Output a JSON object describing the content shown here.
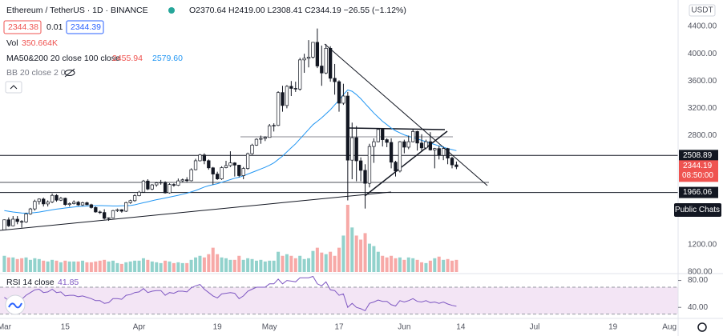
{
  "header": {
    "title": "Ethereum / TetherUS · 1D · BINANCE",
    "ohlc_text": "O2370.64 H2419.00 L2308.41 C2344.19 −26.55 (−1.12%)",
    "bid": "2344.38",
    "spread": "0.01",
    "ask": "2344.39",
    "vol_label": "Vol",
    "vol_value": "350.664K",
    "ma_label": "MA50&200 20 close 100 close",
    "ma_value_1": "2455.94",
    "ma_value_2": "2579.60",
    "bb_label": "BB 20 close 2 0",
    "rsi_label": "RSI 14 close",
    "currency": "USDT",
    "countdown": "08:50:00",
    "chat_button": "Public Chats"
  },
  "chart_data": {
    "type": "candlestick",
    "x": [
      "Mar 1",
      "Mar 2",
      "Mar 3",
      "Mar 4",
      "Mar 5",
      "Mar 6",
      "Mar 7",
      "Mar 8",
      "Mar 9",
      "Mar 10",
      "Mar 11",
      "Mar 12",
      "Mar 13",
      "Mar 14",
      "Mar 15",
      "Mar 16",
      "Mar 17",
      "Mar 18",
      "Mar 19",
      "Mar 20",
      "Mar 21",
      "Mar 22",
      "Mar 23",
      "Mar 24",
      "Mar 25",
      "Mar 26",
      "Mar 27",
      "Mar 28",
      "Mar 29",
      "Mar 30",
      "Mar 31",
      "Apr 1",
      "Apr 2",
      "Apr 3",
      "Apr 4",
      "Apr 5",
      "Apr 6",
      "Apr 7",
      "Apr 8",
      "Apr 9",
      "Apr 10",
      "Apr 11",
      "Apr 12",
      "Apr 13",
      "Apr 14",
      "Apr 15",
      "Apr 16",
      "Apr 17",
      "Apr 18",
      "Apr 19",
      "Apr 20",
      "Apr 21",
      "Apr 22",
      "Apr 23",
      "Apr 24",
      "Apr 25",
      "Apr 26",
      "Apr 27",
      "Apr 28",
      "Apr 29",
      "Apr 30",
      "May 1",
      "May 2",
      "May 3",
      "May 4",
      "May 5",
      "May 6",
      "May 7",
      "May 8",
      "May 9",
      "May 10",
      "May 11",
      "May 12",
      "May 13",
      "May 14",
      "May 15",
      "May 16",
      "May 17",
      "May 18",
      "May 19",
      "May 20",
      "May 21",
      "May 22",
      "May 23",
      "May 24",
      "May 25",
      "May 26",
      "May 27",
      "May 28",
      "May 29",
      "May 30",
      "May 31",
      "Jun 1",
      "Jun 2",
      "Jun 3",
      "Jun 4",
      "Jun 5",
      "Jun 6",
      "Jun 7",
      "Jun 8",
      "Jun 9",
      "Jun 10",
      "Jun 11",
      "Jun 12",
      "Jun 13"
    ],
    "ohlc": [
      [
        1418,
        1570,
        1410,
        1565
      ],
      [
        1565,
        1600,
        1460,
        1477
      ],
      [
        1477,
        1620,
        1470,
        1574
      ],
      [
        1574,
        1620,
        1500,
        1540
      ],
      [
        1540,
        1560,
        1450,
        1533
      ],
      [
        1533,
        1670,
        1520,
        1652
      ],
      [
        1652,
        1740,
        1640,
        1725
      ],
      [
        1725,
        1860,
        1700,
        1835
      ],
      [
        1835,
        1880,
        1790,
        1869
      ],
      [
        1869,
        1890,
        1760,
        1798
      ],
      [
        1798,
        1850,
        1760,
        1826
      ],
      [
        1826,
        1950,
        1810,
        1923
      ],
      [
        1923,
        1940,
        1830,
        1853
      ],
      [
        1853,
        1900,
        1840,
        1881
      ],
      [
        1881,
        1890,
        1770,
        1789
      ],
      [
        1789,
        1820,
        1760,
        1803
      ],
      [
        1803,
        1850,
        1790,
        1823
      ],
      [
        1823,
        1840,
        1770,
        1783
      ],
      [
        1783,
        1830,
        1770,
        1815
      ],
      [
        1815,
        1830,
        1780,
        1786
      ],
      [
        1786,
        1800,
        1730,
        1745
      ],
      [
        1745,
        1760,
        1670,
        1680
      ],
      [
        1680,
        1700,
        1650,
        1672
      ],
      [
        1672,
        1720,
        1570,
        1587
      ],
      [
        1587,
        1600,
        1550,
        1594
      ],
      [
        1594,
        1710,
        1590,
        1700
      ],
      [
        1700,
        1730,
        1680,
        1713
      ],
      [
        1713,
        1720,
        1670,
        1691
      ],
      [
        1691,
        1830,
        1680,
        1817
      ],
      [
        1817,
        1860,
        1800,
        1846
      ],
      [
        1846,
        1940,
        1830,
        1919
      ],
      [
        1919,
        1990,
        1910,
        1970
      ],
      [
        1970,
        2150,
        1960,
        2134
      ],
      [
        2134,
        2160,
        2000,
        2016
      ],
      [
        2016,
        2090,
        2000,
        2077
      ],
      [
        2077,
        2120,
        2050,
        2107
      ],
      [
        2107,
        2150,
        2080,
        2114
      ],
      [
        2114,
        2130,
        1950,
        1960
      ],
      [
        1960,
        2100,
        1950,
        2083
      ],
      [
        2083,
        2100,
        2050,
        2071
      ],
      [
        2071,
        2170,
        2060,
        2136
      ],
      [
        2136,
        2170,
        2120,
        2152
      ],
      [
        2152,
        2190,
        2120,
        2138
      ],
      [
        2138,
        2320,
        2130,
        2300
      ],
      [
        2300,
        2460,
        2290,
        2431
      ],
      [
        2431,
        2530,
        2420,
        2516
      ],
      [
        2516,
        2540,
        2380,
        2432
      ],
      [
        2432,
        2450,
        2300,
        2327
      ],
      [
        2327,
        2340,
        2080,
        2236
      ],
      [
        2236,
        2270,
        2150,
        2165
      ],
      [
        2165,
        2350,
        2150,
        2330
      ],
      [
        2330,
        2430,
        2320,
        2360
      ],
      [
        2360,
        2570,
        2340,
        2399
      ],
      [
        2399,
        2410,
        2200,
        2367
      ],
      [
        2367,
        2370,
        2190,
        2213
      ],
      [
        2213,
        2340,
        2160,
        2318
      ],
      [
        2318,
        2550,
        2300,
        2534
      ],
      [
        2534,
        2680,
        2520,
        2660
      ],
      [
        2660,
        2760,
        2650,
        2746
      ],
      [
        2746,
        2800,
        2680,
        2758
      ],
      [
        2758,
        2790,
        2720,
        2773
      ],
      [
        2773,
        2970,
        2770,
        2944
      ],
      [
        2944,
        2980,
        2860,
        2949
      ],
      [
        2949,
        3450,
        2940,
        3431
      ],
      [
        3431,
        3530,
        3150,
        3241
      ],
      [
        3241,
        3540,
        3200,
        3522
      ],
      [
        3522,
        3600,
        3380,
        3492
      ],
      [
        3492,
        3590,
        3440,
        3482
      ],
      [
        3482,
        3940,
        3460,
        3910
      ],
      [
        3910,
        4000,
        3720,
        3933
      ],
      [
        3933,
        4200,
        3800,
        3950
      ],
      [
        3950,
        4170,
        3930,
        4167
      ],
      [
        4167,
        4370,
        3790,
        3820
      ],
      [
        3820,
        4120,
        3530,
        3718
      ],
      [
        3718,
        4140,
        3700,
        4080
      ],
      [
        4080,
        4110,
        3590,
        3640
      ],
      [
        3640,
        3850,
        3400,
        3590
      ],
      [
        3590,
        3610,
        3150,
        3275
      ],
      [
        3275,
        3560,
        3250,
        3380
      ],
      [
        3380,
        3440,
        1850,
        2440
      ],
      [
        2440,
        2990,
        2160,
        2770
      ],
      [
        2770,
        2940,
        2130,
        2430
      ],
      [
        2430,
        2480,
        2130,
        2290
      ],
      [
        2290,
        2380,
        1730,
        2100
      ],
      [
        2100,
        2680,
        2040,
        2640
      ],
      [
        2640,
        2760,
        2400,
        2710
      ],
      [
        2710,
        2910,
        2700,
        2890
      ],
      [
        2890,
        2900,
        2640,
        2740
      ],
      [
        2740,
        2760,
        2630,
        2700
      ],
      [
        2700,
        2760,
        2320,
        2410
      ],
      [
        2410,
        2430,
        2200,
        2280
      ],
      [
        2280,
        2720,
        2260,
        2710
      ],
      [
        2710,
        2740,
        2540,
        2630
      ],
      [
        2630,
        2800,
        2600,
        2710
      ],
      [
        2710,
        2890,
        2700,
        2860
      ],
      [
        2860,
        2870,
        2580,
        2690
      ],
      [
        2690,
        2820,
        2560,
        2620
      ],
      [
        2620,
        2740,
        2600,
        2710
      ],
      [
        2710,
        2850,
        2580,
        2590
      ],
      [
        2590,
        2620,
        2320,
        2610
      ],
      [
        2610,
        2650,
        2450,
        2510
      ],
      [
        2510,
        2640,
        2440,
        2610
      ],
      [
        2610,
        2620,
        2380,
        2470
      ],
      [
        2470,
        2490,
        2320,
        2370.74
      ],
      [
        2370.64,
        2419.0,
        2308.41,
        2344.19
      ]
    ],
    "up_color": "#ffffff",
    "down_color": "#131722",
    "wick_color": "#131722",
    "ylim": [
      788,
      4788
    ],
    "yticks": [
      {
        "value": 4400,
        "label": "4400.00"
      },
      {
        "value": 4000,
        "label": "4000.00"
      },
      {
        "value": 3600,
        "label": "3600.00"
      },
      {
        "value": 3200,
        "label": "3200.00"
      },
      {
        "value": 2800,
        "label": "2800.00"
      },
      {
        "value": 1200,
        "label": "1200.00"
      },
      {
        "value": 800,
        "label": "800.00"
      }
    ],
    "xlim": [
      "Feb 28",
      "Aug 3"
    ],
    "xticks": [
      {
        "value": "Mar 1",
        "label": "Mar"
      },
      {
        "value": "Mar 15",
        "label": "15"
      },
      {
        "value": "Apr 1",
        "label": "Apr"
      },
      {
        "value": "Apr 19",
        "label": "19"
      },
      {
        "value": "May 1",
        "label": "May"
      },
      {
        "value": "May 17",
        "label": "17"
      },
      {
        "value": "Jun 1",
        "label": "Jun"
      },
      {
        "value": "Jun 14",
        "label": "14"
      },
      {
        "value": "Jul 1",
        "label": "Jul"
      },
      {
        "value": "Jul 19",
        "label": "19"
      },
      {
        "value": "Aug 1",
        "label": "Aug"
      }
    ],
    "price_lines": [
      2508.89,
      1966.06
    ],
    "volume": {
      "up_color": "#26a69a",
      "down_color": "#ef5350",
      "values": [
        468000,
        421200,
        421200,
        374400,
        397800,
        421200,
        351000,
        397800,
        374400,
        327600,
        304200,
        351000,
        327600,
        280800,
        327600,
        304200,
        304200,
        304200,
        327600,
        280800,
        280800,
        304200,
        327600,
        351000,
        304200,
        327600,
        257400,
        234000,
        280800,
        304200,
        327600,
        327600,
        397800,
        351000,
        304200,
        280800,
        257400,
        327600,
        304200,
        257400,
        280800,
        257400,
        257400,
        351000,
        421200,
        468000,
        421200,
        514800,
        702000,
        514800,
        421200,
        397800,
        351000,
        351000,
        468000,
        351000,
        397800,
        374400,
        327600,
        351000,
        304200,
        327600,
        327600,
        585000,
        468000,
        514800,
        468000,
        397800,
        468000,
        374400,
        397800,
        608400,
        702000,
        561600,
        514800,
        585000,
        468000,
        702000,
        1053000,
        1942200,
        1287000,
        1053000,
        936000,
        1123200,
        819000,
        748800,
        585000,
        468000,
        421200,
        468000,
        397800,
        421200,
        351000,
        421200,
        397800,
        351000,
        280800,
        257400,
        327600,
        397800,
        444600,
        351000,
        374400,
        327600,
        350664
      ]
    },
    "ma": {
      "color": "#2196f3",
      "values": [
        1700,
        1690,
        1680,
        1672,
        1665,
        1662,
        1665,
        1670,
        1678,
        1690,
        1700,
        1712,
        1722,
        1730,
        1738,
        1745,
        1752,
        1758,
        1763,
        1768,
        1770,
        1772,
        1773,
        1772,
        1770,
        1768,
        1768,
        1770,
        1772,
        1775,
        1785,
        1800,
        1815,
        1830,
        1845,
        1860,
        1872,
        1885,
        1898,
        1912,
        1925,
        1940,
        1955,
        1975,
        1995,
        2020,
        2045,
        2065,
        2080,
        2095,
        2115,
        2135,
        2155,
        2175,
        2190,
        2210,
        2235,
        2260,
        2285,
        2310,
        2335,
        2365,
        2400,
        2450,
        2500,
        2560,
        2620,
        2680,
        2750,
        2820,
        2890,
        2960,
        3010,
        3060,
        3120,
        3180,
        3250,
        3320,
        3400,
        3470,
        3450,
        3400,
        3340,
        3270,
        3200,
        3130,
        3070,
        3010,
        2960,
        2910,
        2870,
        2840,
        2810,
        2790,
        2770,
        2750,
        2730,
        2710,
        2690,
        2670,
        2650,
        2630,
        2610,
        2595,
        2579.6
      ]
    },
    "rsi": {
      "color": "#7e57c2",
      "band_color": "#f3e5f5",
      "bands": [
        30,
        70
      ],
      "ylim": [
        26,
        89
      ],
      "yticks": [
        {
          "value": 80,
          "label": "80.00"
        },
        {
          "value": 40,
          "label": "40.00"
        }
      ],
      "values": [
        55,
        50,
        55,
        53,
        52,
        58,
        62,
        66,
        67,
        62,
        63,
        67,
        62,
        63,
        57,
        58,
        58,
        56,
        57,
        55,
        53,
        50,
        50,
        46,
        47,
        53,
        53,
        52,
        58,
        59,
        62,
        63,
        68,
        62,
        64,
        65,
        65,
        58,
        62,
        61,
        64,
        64,
        63,
        69,
        72,
        74,
        67,
        62,
        57,
        54,
        60,
        61,
        62,
        61,
        53,
        57,
        64,
        67,
        70,
        70,
        70,
        75,
        75,
        82,
        75,
        80,
        79,
        78,
        84,
        84,
        84,
        86,
        75,
        72,
        78,
        66,
        65,
        58,
        60,
        40,
        46,
        40,
        38,
        35,
        46,
        48,
        51,
        49,
        49,
        44,
        42,
        50,
        48,
        50,
        53,
        49,
        48,
        50,
        47,
        48,
        46,
        48,
        45,
        43,
        41.85
      ]
    }
  }
}
